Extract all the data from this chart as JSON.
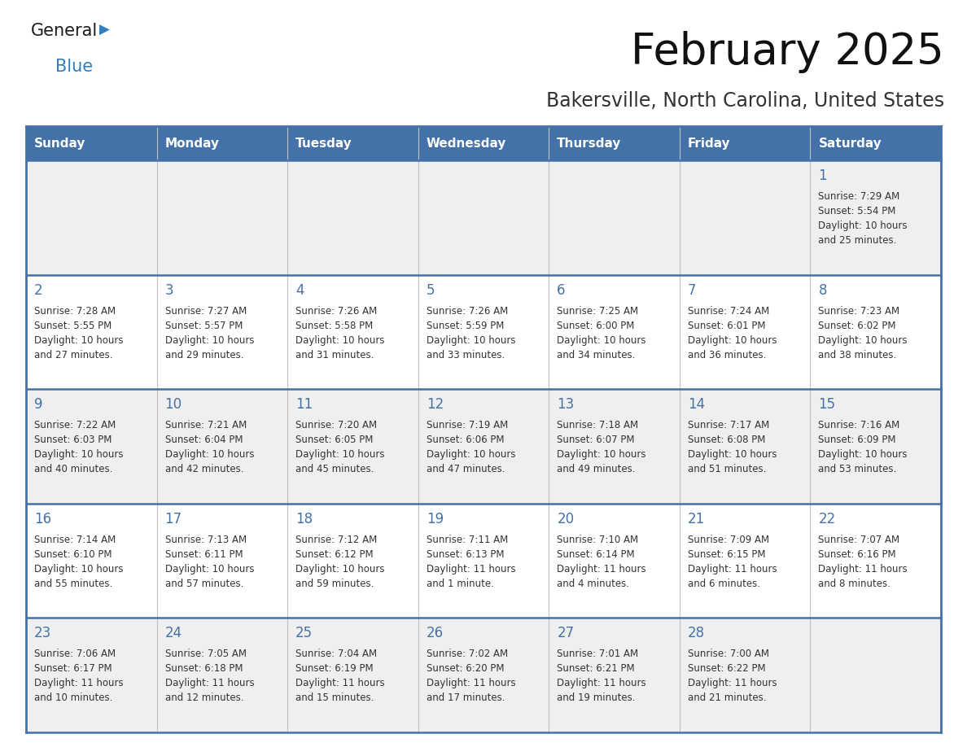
{
  "title": "February 2025",
  "subtitle": "Bakersville, North Carolina, United States",
  "days_of_week": [
    "Sunday",
    "Monday",
    "Tuesday",
    "Wednesday",
    "Thursday",
    "Friday",
    "Saturday"
  ],
  "header_bg": "#4472a8",
  "header_text": "#ffffff",
  "cell_bg_odd": "#efefef",
  "cell_bg_even": "#ffffff",
  "row_border_color": "#4472a8",
  "col_border_color": "#c0c0c0",
  "day_num_color": "#4472a8",
  "cell_text_color": "#333333",
  "title_color": "#111111",
  "subtitle_color": "#333333",
  "logo_general_color": "#1a1a1a",
  "logo_blue_color": "#2e7fc1",
  "weeks": [
    [
      {
        "day": null,
        "sunrise": null,
        "sunset": null,
        "daylight": null
      },
      {
        "day": null,
        "sunrise": null,
        "sunset": null,
        "daylight": null
      },
      {
        "day": null,
        "sunrise": null,
        "sunset": null,
        "daylight": null
      },
      {
        "day": null,
        "sunrise": null,
        "sunset": null,
        "daylight": null
      },
      {
        "day": null,
        "sunrise": null,
        "sunset": null,
        "daylight": null
      },
      {
        "day": null,
        "sunrise": null,
        "sunset": null,
        "daylight": null
      },
      {
        "day": 1,
        "sunrise": "7:29 AM",
        "sunset": "5:54 PM",
        "daylight": "10 hours\nand 25 minutes."
      }
    ],
    [
      {
        "day": 2,
        "sunrise": "7:28 AM",
        "sunset": "5:55 PM",
        "daylight": "10 hours\nand 27 minutes."
      },
      {
        "day": 3,
        "sunrise": "7:27 AM",
        "sunset": "5:57 PM",
        "daylight": "10 hours\nand 29 minutes."
      },
      {
        "day": 4,
        "sunrise": "7:26 AM",
        "sunset": "5:58 PM",
        "daylight": "10 hours\nand 31 minutes."
      },
      {
        "day": 5,
        "sunrise": "7:26 AM",
        "sunset": "5:59 PM",
        "daylight": "10 hours\nand 33 minutes."
      },
      {
        "day": 6,
        "sunrise": "7:25 AM",
        "sunset": "6:00 PM",
        "daylight": "10 hours\nand 34 minutes."
      },
      {
        "day": 7,
        "sunrise": "7:24 AM",
        "sunset": "6:01 PM",
        "daylight": "10 hours\nand 36 minutes."
      },
      {
        "day": 8,
        "sunrise": "7:23 AM",
        "sunset": "6:02 PM",
        "daylight": "10 hours\nand 38 minutes."
      }
    ],
    [
      {
        "day": 9,
        "sunrise": "7:22 AM",
        "sunset": "6:03 PM",
        "daylight": "10 hours\nand 40 minutes."
      },
      {
        "day": 10,
        "sunrise": "7:21 AM",
        "sunset": "6:04 PM",
        "daylight": "10 hours\nand 42 minutes."
      },
      {
        "day": 11,
        "sunrise": "7:20 AM",
        "sunset": "6:05 PM",
        "daylight": "10 hours\nand 45 minutes."
      },
      {
        "day": 12,
        "sunrise": "7:19 AM",
        "sunset": "6:06 PM",
        "daylight": "10 hours\nand 47 minutes."
      },
      {
        "day": 13,
        "sunrise": "7:18 AM",
        "sunset": "6:07 PM",
        "daylight": "10 hours\nand 49 minutes."
      },
      {
        "day": 14,
        "sunrise": "7:17 AM",
        "sunset": "6:08 PM",
        "daylight": "10 hours\nand 51 minutes."
      },
      {
        "day": 15,
        "sunrise": "7:16 AM",
        "sunset": "6:09 PM",
        "daylight": "10 hours\nand 53 minutes."
      }
    ],
    [
      {
        "day": 16,
        "sunrise": "7:14 AM",
        "sunset": "6:10 PM",
        "daylight": "10 hours\nand 55 minutes."
      },
      {
        "day": 17,
        "sunrise": "7:13 AM",
        "sunset": "6:11 PM",
        "daylight": "10 hours\nand 57 minutes."
      },
      {
        "day": 18,
        "sunrise": "7:12 AM",
        "sunset": "6:12 PM",
        "daylight": "10 hours\nand 59 minutes."
      },
      {
        "day": 19,
        "sunrise": "7:11 AM",
        "sunset": "6:13 PM",
        "daylight": "11 hours\nand 1 minute."
      },
      {
        "day": 20,
        "sunrise": "7:10 AM",
        "sunset": "6:14 PM",
        "daylight": "11 hours\nand 4 minutes."
      },
      {
        "day": 21,
        "sunrise": "7:09 AM",
        "sunset": "6:15 PM",
        "daylight": "11 hours\nand 6 minutes."
      },
      {
        "day": 22,
        "sunrise": "7:07 AM",
        "sunset": "6:16 PM",
        "daylight": "11 hours\nand 8 minutes."
      }
    ],
    [
      {
        "day": 23,
        "sunrise": "7:06 AM",
        "sunset": "6:17 PM",
        "daylight": "11 hours\nand 10 minutes."
      },
      {
        "day": 24,
        "sunrise": "7:05 AM",
        "sunset": "6:18 PM",
        "daylight": "11 hours\nand 12 minutes."
      },
      {
        "day": 25,
        "sunrise": "7:04 AM",
        "sunset": "6:19 PM",
        "daylight": "11 hours\nand 15 minutes."
      },
      {
        "day": 26,
        "sunrise": "7:02 AM",
        "sunset": "6:20 PM",
        "daylight": "11 hours\nand 17 minutes."
      },
      {
        "day": 27,
        "sunrise": "7:01 AM",
        "sunset": "6:21 PM",
        "daylight": "11 hours\nand 19 minutes."
      },
      {
        "day": 28,
        "sunrise": "7:00 AM",
        "sunset": "6:22 PM",
        "daylight": "11 hours\nand 21 minutes."
      },
      {
        "day": null,
        "sunrise": null,
        "sunset": null,
        "daylight": null
      }
    ]
  ]
}
